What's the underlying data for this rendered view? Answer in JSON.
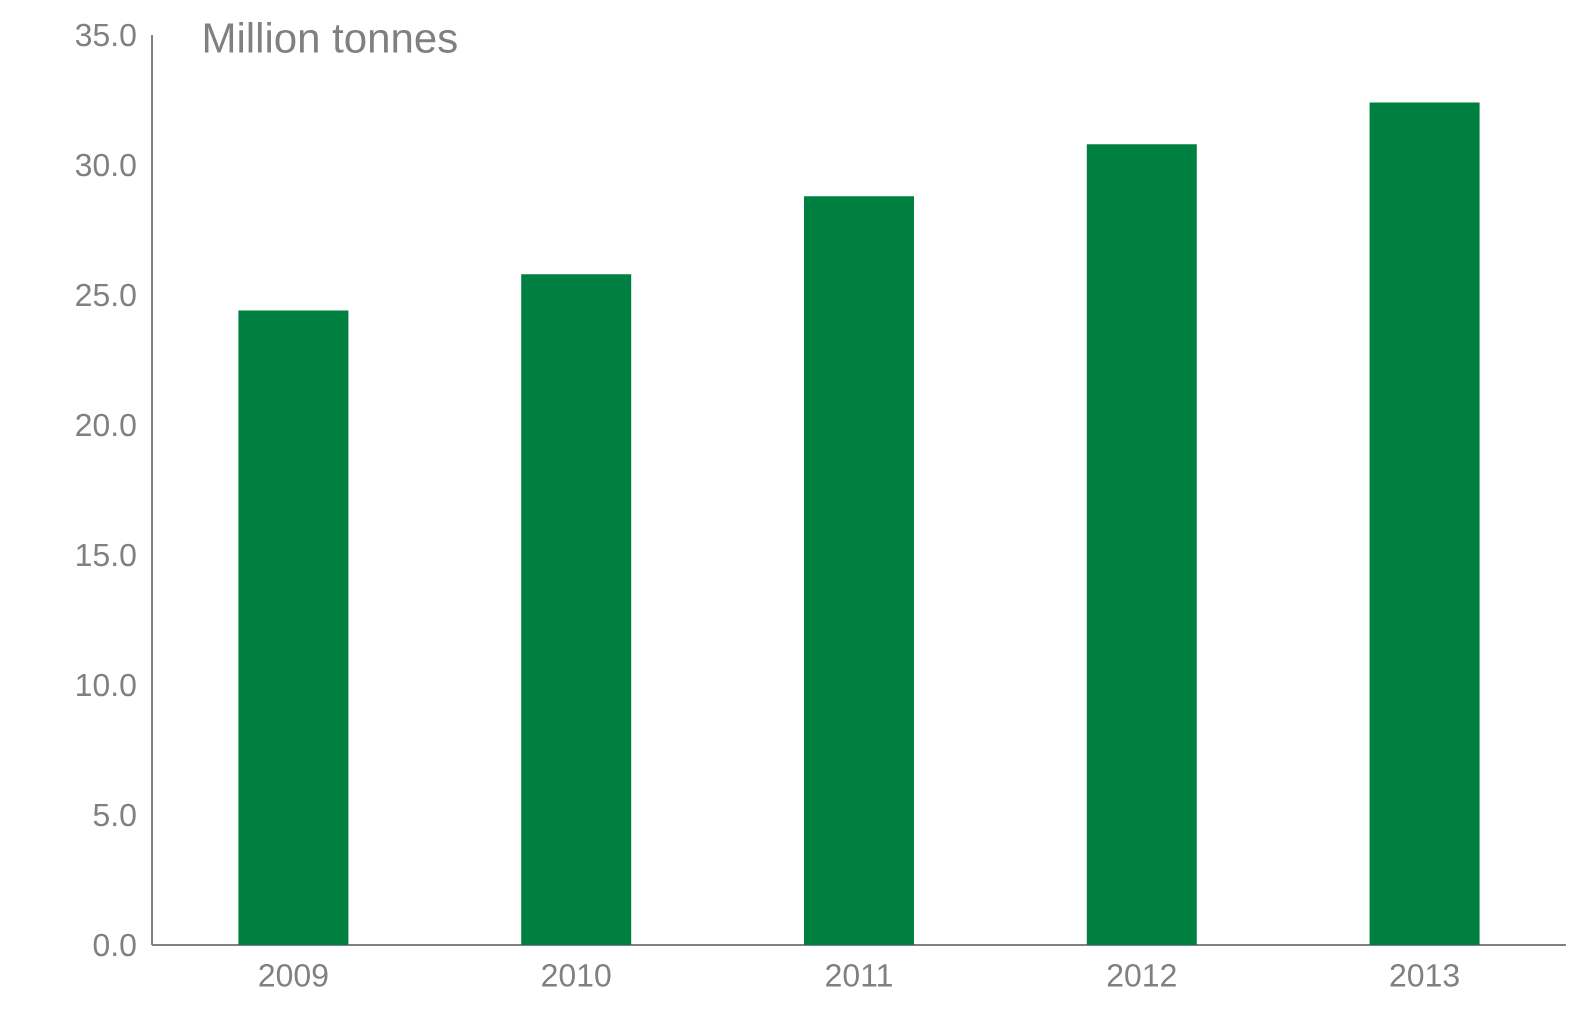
{
  "chart_data": {
    "type": "bar",
    "title": "Million tonnes",
    "categories": [
      "2009",
      "2010",
      "2011",
      "2012",
      "2013"
    ],
    "values": [
      24.4,
      25.8,
      28.8,
      30.8,
      32.4
    ],
    "color": "#008040",
    "ylim": [
      0,
      35
    ],
    "yticks": [
      {
        "value": 0,
        "label": "0.0"
      },
      {
        "value": 5,
        "label": "5.0"
      },
      {
        "value": 10,
        "label": "10.0"
      },
      {
        "value": 15,
        "label": "15.0"
      },
      {
        "value": 20,
        "label": "20.0"
      },
      {
        "value": 25,
        "label": "25.0"
      },
      {
        "value": 30,
        "label": "30.0"
      },
      {
        "value": 35,
        "label": "35.0"
      }
    ],
    "grid": false
  }
}
